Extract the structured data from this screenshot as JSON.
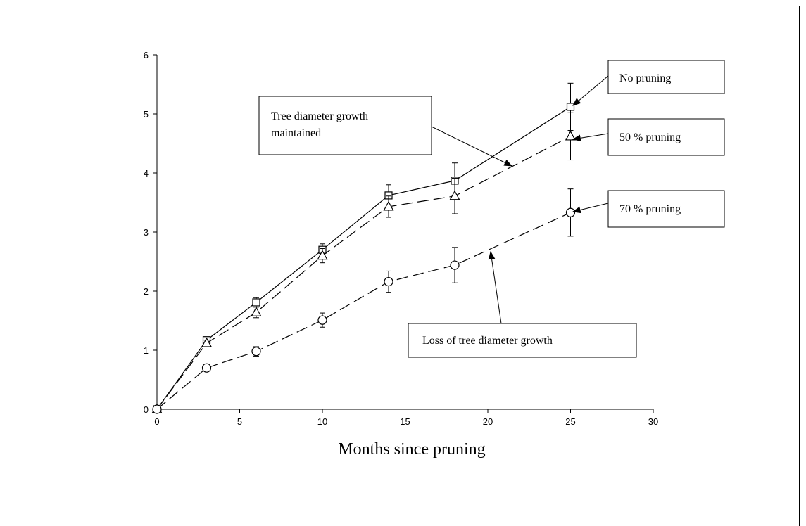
{
  "chart_data": {
    "type": "line",
    "title": "",
    "xlabel": "Months since pruning",
    "ylabel": "",
    "xlim": [
      0,
      30
    ],
    "ylim": [
      0,
      6
    ],
    "xticks": [
      0,
      5,
      10,
      15,
      20,
      25,
      30
    ],
    "yticks": [
      0,
      1,
      2,
      3,
      4,
      5,
      6
    ],
    "grid": false,
    "x": [
      0,
      3,
      6,
      10,
      14,
      18,
      25
    ],
    "series": [
      {
        "name": "No pruning",
        "marker": "square",
        "line_style": "solid",
        "values": [
          0,
          1.17,
          1.81,
          2.7,
          3.62,
          3.87,
          5.12
        ],
        "errors": [
          0,
          0.05,
          0.08,
          0.1,
          0.18,
          0.3,
          0.4
        ]
      },
      {
        "name": "50 % pruning",
        "marker": "triangle",
        "line_style": "dashed",
        "values": [
          0,
          1.12,
          1.64,
          2.6,
          3.43,
          3.61,
          4.62
        ],
        "errors": [
          0,
          0.05,
          0.09,
          0.12,
          0.18,
          0.3,
          0.4
        ]
      },
      {
        "name": "70 % pruning",
        "marker": "circle",
        "line_style": "dashed",
        "values": [
          0,
          0.7,
          0.98,
          1.51,
          2.16,
          2.44,
          3.33
        ],
        "errors": [
          0,
          0.05,
          0.08,
          0.12,
          0.18,
          0.3,
          0.4
        ]
      }
    ],
    "annotations": [
      {
        "id": "no-pruning",
        "text": "No pruning",
        "points_to": {
          "x": 25,
          "y": 5.12
        }
      },
      {
        "id": "fifty-pruning",
        "text": "50 % pruning",
        "points_to": {
          "x": 25,
          "y": 4.62
        }
      },
      {
        "id": "seventy-pruning",
        "text": "70 % pruning",
        "points_to": {
          "x": 25,
          "y": 3.33
        }
      },
      {
        "id": "growth-maintained",
        "text_lines": [
          "Tree diameter growth",
          "maintained"
        ],
        "points_to": {
          "x": 21.2,
          "y": 4.12
        }
      },
      {
        "id": "loss-of-growth",
        "text": "Loss of tree diameter growth",
        "points_to": {
          "x": 20.8,
          "y": 2.68
        }
      }
    ]
  }
}
